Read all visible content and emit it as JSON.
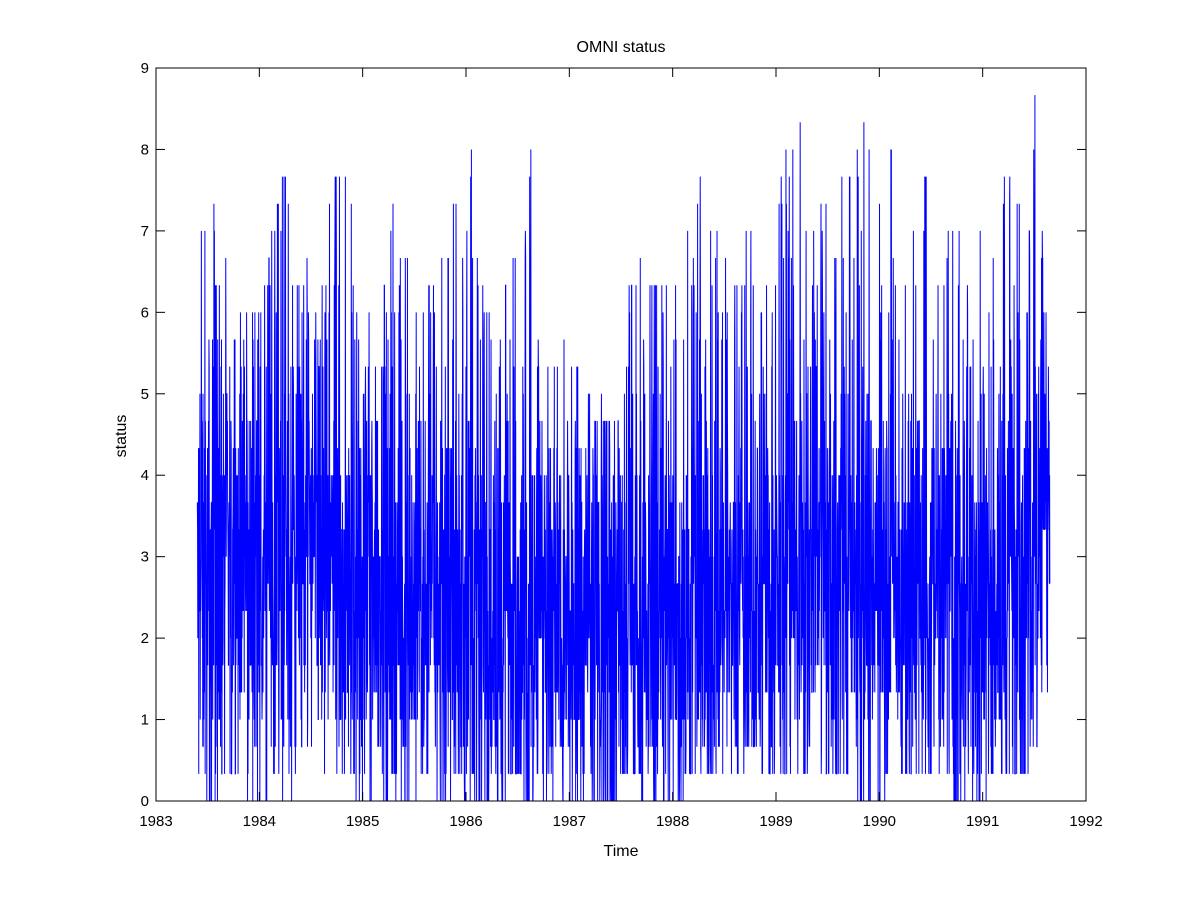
{
  "chart_data": {
    "type": "line",
    "title": "OMNI status",
    "xlabel": "Time",
    "ylabel": "status",
    "xlim": [
      1983,
      1992
    ],
    "ylim": [
      0,
      9
    ],
    "x_ticks": [
      "1983",
      "1984",
      "1985",
      "1986",
      "1987",
      "1988",
      "1989",
      "1990",
      "1991",
      "1992"
    ],
    "y_ticks": [
      "0",
      "1",
      "2",
      "3",
      "4",
      "5",
      "6",
      "7",
      "8",
      "9"
    ],
    "grid": false,
    "series": [
      {
        "color": "#0000ff",
        "x_range": [
          1983.4,
          1991.65
        ],
        "x": [
          1983.4,
          1983.45,
          1983.5,
          1983.55,
          1983.6,
          1983.65,
          1983.75,
          1984.0,
          1984.2,
          1984.25,
          1984.4,
          1984.5,
          1984.6,
          1984.75,
          1984.85,
          1985.0,
          1985.2,
          1985.3,
          1985.33,
          1985.5,
          1985.6,
          1985.8,
          1985.9,
          1986.0,
          1986.1,
          1986.2,
          1986.3,
          1986.5,
          1986.6,
          1986.7,
          1986.8,
          1987.0,
          1987.2,
          1987.4,
          1987.5,
          1987.6,
          1987.8,
          1987.9,
          1988.0,
          1988.2,
          1988.4,
          1988.5,
          1988.6,
          1988.8,
          1988.9,
          1989.0,
          1989.2,
          1989.3,
          1989.5,
          1989.7,
          1989.8,
          1989.85,
          1990.0,
          1990.1,
          1990.2,
          1990.4,
          1990.5,
          1990.6,
          1990.8,
          1991.0,
          1991.1,
          1991.2,
          1991.3,
          1991.4,
          1991.5,
          1991.55,
          1991.6,
          1991.65
        ],
        "upper": [
          4.3,
          7.7,
          6.0,
          7.7,
          6.0,
          6.7,
          6.3,
          6.0,
          7.7,
          7.7,
          6.0,
          7.0,
          6.7,
          7.7,
          8.0,
          6.0,
          6.3,
          8.3,
          7.3,
          6.0,
          6.3,
          6.7,
          7.3,
          6.7,
          9.0,
          6.0,
          6.3,
          6.7,
          8.7,
          6.3,
          5.3,
          5.7,
          5.0,
          4.7,
          4.7,
          7.0,
          6.3,
          6.7,
          6.0,
          7.3,
          8.0,
          6.7,
          6.7,
          7.0,
          6.3,
          7.0,
          9.0,
          7.0,
          7.3,
          7.7,
          8.0,
          8.3,
          7.3,
          8.0,
          7.7,
          8.3,
          7.0,
          7.0,
          7.0,
          7.3,
          6.7,
          8.7,
          7.0,
          7.7,
          8.7,
          7.7,
          7.7,
          6.7
        ],
        "lower": [
          0.3,
          0.0,
          0.0,
          0.0,
          0.0,
          0.3,
          0.3,
          0.0,
          0.3,
          0.0,
          0.3,
          0.0,
          0.3,
          0.3,
          0.0,
          0.0,
          0.0,
          0.3,
          0.0,
          0.0,
          0.3,
          0.0,
          0.3,
          0.0,
          0.0,
          0.0,
          0.0,
          0.3,
          0.0,
          0.3,
          0.0,
          0.0,
          0.0,
          0.0,
          0.3,
          0.3,
          0.0,
          0.0,
          0.0,
          0.3,
          0.3,
          0.3,
          0.3,
          0.7,
          0.3,
          0.3,
          0.3,
          0.3,
          0.3,
          0.3,
          0.0,
          0.0,
          0.0,
          0.3,
          0.3,
          0.3,
          0.3,
          0.3,
          0.0,
          0.0,
          0.3,
          0.3,
          0.3,
          0.3,
          0.7,
          0.7,
          0.7,
          1.0
        ],
        "typical": [
          2.5,
          2.7,
          2.6,
          2.7,
          2.8,
          2.8,
          2.8,
          2.8,
          3.0,
          3.0,
          2.9,
          3.0,
          2.8,
          2.7,
          2.7,
          2.6,
          2.6,
          2.5,
          2.5,
          2.4,
          2.4,
          2.3,
          2.3,
          2.3,
          2.2,
          2.2,
          2.2,
          2.1,
          2.0,
          2.0,
          2.0,
          2.0,
          2.0,
          2.0,
          2.0,
          2.0,
          2.0,
          2.1,
          2.1,
          2.2,
          2.2,
          2.3,
          2.3,
          2.4,
          2.5,
          2.5,
          2.6,
          2.6,
          2.7,
          2.7,
          2.8,
          2.8,
          2.8,
          2.7,
          2.7,
          2.7,
          2.6,
          2.6,
          2.5,
          2.5,
          2.5,
          2.6,
          2.7,
          2.9,
          3.1,
          3.2,
          3.3,
          3.3
        ]
      }
    ]
  }
}
